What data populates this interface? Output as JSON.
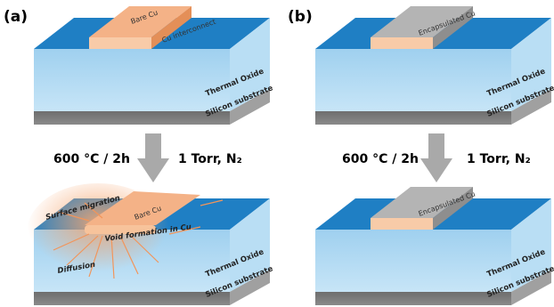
{
  "panels": [
    {
      "label": "(a)",
      "before": {
        "cu_label": "Bare Cu",
        "cu_note": "Cu interconnect",
        "layers": [
          "Thermal Oxide",
          "Silicon substrate"
        ]
      },
      "condition": {
        "temperature": "600 °C / 2h",
        "atmosphere": "1 Torr, N₂"
      },
      "after": {
        "cu_label": "Bare Cu",
        "annotations": [
          "Surface migration",
          "Void formation in Cu",
          "Diffusion"
        ],
        "layers": [
          "Thermal Oxide",
          "Silicon substrate"
        ]
      }
    },
    {
      "label": "(b)",
      "before": {
        "cu_label": "Encapsulated Cu",
        "layers": [
          "Thermal Oxide",
          "Silicon substrate"
        ]
      },
      "condition": {
        "temperature": "600 °C / 2h",
        "atmosphere": "1 Torr, N₂"
      },
      "after": {
        "cu_label": "Encapsulated Cu",
        "layers": [
          "Thermal Oxide",
          "Silicon substrate"
        ]
      }
    }
  ]
}
